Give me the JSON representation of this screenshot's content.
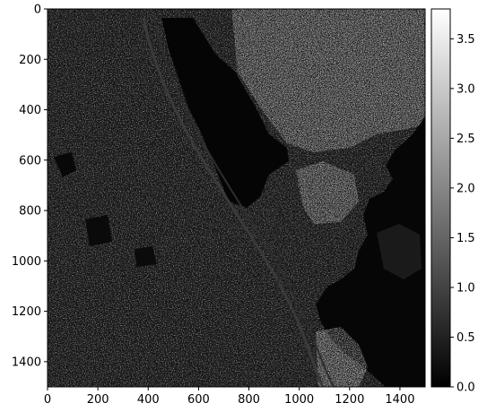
{
  "chart_data": {
    "type": "heatmap",
    "title": "",
    "xlabel": "",
    "ylabel": "",
    "xlim": [
      0,
      1500
    ],
    "ylim": [
      1500,
      0
    ],
    "x_ticks": [
      0,
      200,
      400,
      600,
      800,
      1000,
      1200,
      1400
    ],
    "y_ticks": [
      0,
      200,
      400,
      600,
      800,
      1000,
      1200,
      1400
    ],
    "colormap": "gray",
    "colorbar": {
      "range": [
        0.0,
        3.8
      ],
      "ticks": [
        "0.0",
        "0.5",
        "1.0",
        "1.5",
        "2.0",
        "2.5",
        "3.0",
        "3.5"
      ]
    },
    "image_description": "grayscale edge-magnitude map of an aerial scene: dense bright urban texture, dark water body in upper-center, dark water region on the right, two diagonal highways",
    "grid": false
  }
}
